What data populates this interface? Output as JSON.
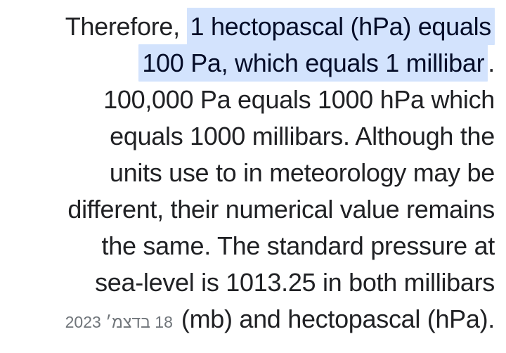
{
  "page": {
    "background_color": "#ffffff",
    "kind": "search-result-snippet"
  },
  "colors": {
    "body_text": "#202124",
    "highlight_background": "#d3e3fd",
    "highlight_text": "#040c28",
    "date_text": "#70757a"
  },
  "snippet": {
    "highlighted_phrase": "1 hectopascal (hPa) equals 100 Pa, which equals 1 millibar",
    "date_label": "18 בדצמ׳ 2023",
    "lines": [
      {
        "pre": "Therefore, ",
        "highlight": "1 hectopascal (hPa) equals"
      },
      {
        "highlight": "100 Pa, which equals 1 millibar",
        "post": "."
      },
      {
        "text": "100,000 Pa equals 1000 hPa which"
      },
      {
        "text": "equals 1000 millibars. Although the"
      },
      {
        "text": "units use to in meteorology may be"
      },
      {
        "text": "different, their numerical value remains"
      },
      {
        "text": "the same. The standard pressure at"
      },
      {
        "text": "sea-level is 1013.25 in both millibars"
      },
      {
        "date": "18 בדצמ׳ 2023",
        "text": "(mb) and hectopascal (hPa)."
      }
    ]
  }
}
